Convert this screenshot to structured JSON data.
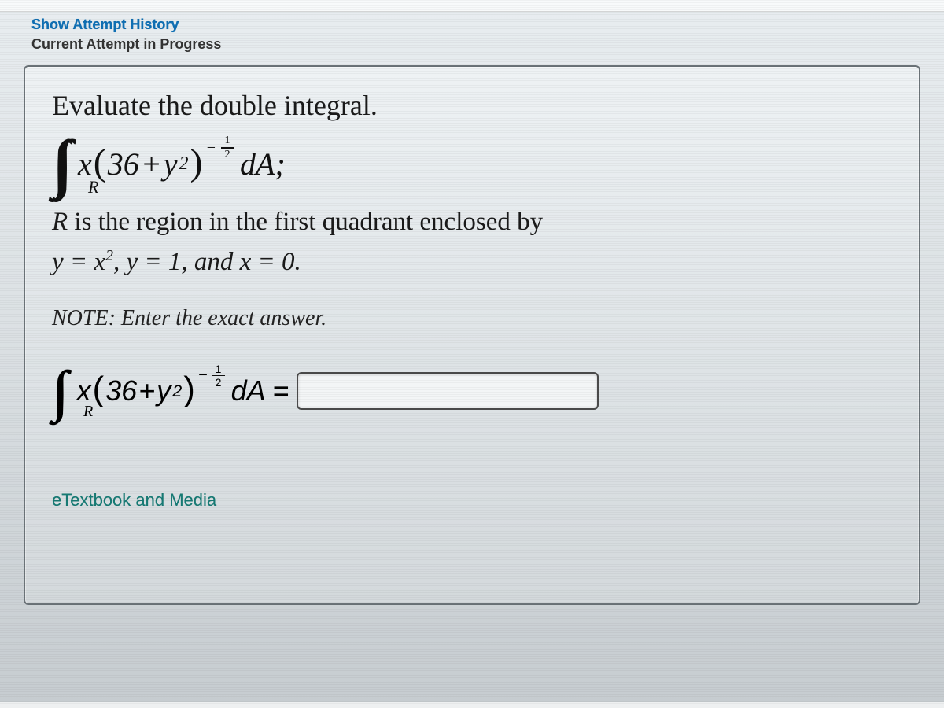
{
  "links": {
    "show_history": "Show Attempt History",
    "current_attempt": "Current Attempt in Progress"
  },
  "question": {
    "title": "Evaluate the double integral.",
    "integral_region_sub": "R",
    "integrand_x": "x",
    "const_36": "36",
    "plus": " + ",
    "y": "y",
    "exp_neg": "−",
    "exp_num": "1",
    "exp_den": "2",
    "dA_semicolon": "dA;",
    "region_line1_prefix": "R",
    "region_line1_rest": " is the region in the first quadrant enclosed by",
    "region_line2_a": "y = x",
    "region_line2_b": ", y = 1, and x = 0.",
    "note": "NOTE: Enter the exact answer.",
    "dA_eq": "dA =",
    "answer_value": "",
    "etextbook": "eTextbook and Media"
  },
  "style": {
    "accent_link": "#0f6fb3",
    "etextbook_color": "#177a74",
    "panel_border": "#6b7378",
    "input_border": "#4a4a4a"
  }
}
